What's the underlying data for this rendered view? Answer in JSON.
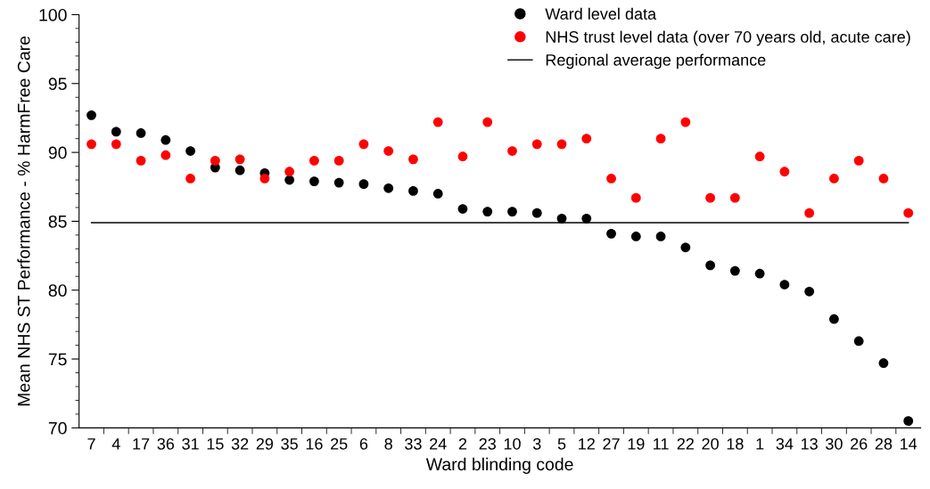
{
  "chart_data": {
    "type": "scatter",
    "xlabel": "Ward blinding code",
    "ylabel": "Mean NHS ST Performance - % HarmFree Care",
    "categories": [
      "7",
      "4",
      "17",
      "36",
      "31",
      "15",
      "32",
      "29",
      "35",
      "16",
      "25",
      "6",
      "8",
      "33",
      "24",
      "2",
      "23",
      "10",
      "3",
      "5",
      "12",
      "27",
      "19",
      "11",
      "22",
      "20",
      "18",
      "1",
      "34",
      "13",
      "30",
      "26",
      "28",
      "14"
    ],
    "series": [
      {
        "name": "Ward level data",
        "color": "#000000",
        "values": [
          92.7,
          91.5,
          91.4,
          90.9,
          90.1,
          88.9,
          88.7,
          88.5,
          88.0,
          87.9,
          87.8,
          87.7,
          87.4,
          87.2,
          87.0,
          85.9,
          85.7,
          85.7,
          85.6,
          85.2,
          85.2,
          84.1,
          83.9,
          83.9,
          83.1,
          81.8,
          81.4,
          81.2,
          80.4,
          79.9,
          77.9,
          76.3,
          74.7,
          70.5
        ]
      },
      {
        "name": "NHS trust level data (over 70 years old, acute care)",
        "color": "#ff0000",
        "values": [
          90.6,
          90.6,
          89.4,
          89.8,
          88.1,
          89.4,
          89.5,
          88.1,
          88.6,
          89.4,
          89.4,
          90.6,
          90.1,
          89.5,
          92.2,
          89.7,
          92.2,
          90.1,
          90.6,
          90.6,
          91.0,
          88.1,
          86.7,
          91.0,
          92.2,
          86.7,
          86.7,
          89.7,
          88.6,
          85.6,
          88.1,
          89.4,
          88.1,
          85.6
        ]
      }
    ],
    "ref_lines": [
      {
        "axis": "y",
        "value": 84.9,
        "label": "Regional average performance",
        "color": "#000000"
      }
    ],
    "ylim": [
      70,
      100
    ],
    "yticks": [
      70,
      75,
      80,
      85,
      90,
      95,
      100
    ],
    "grid": false,
    "legend": "top right",
    "marker": "circle"
  }
}
